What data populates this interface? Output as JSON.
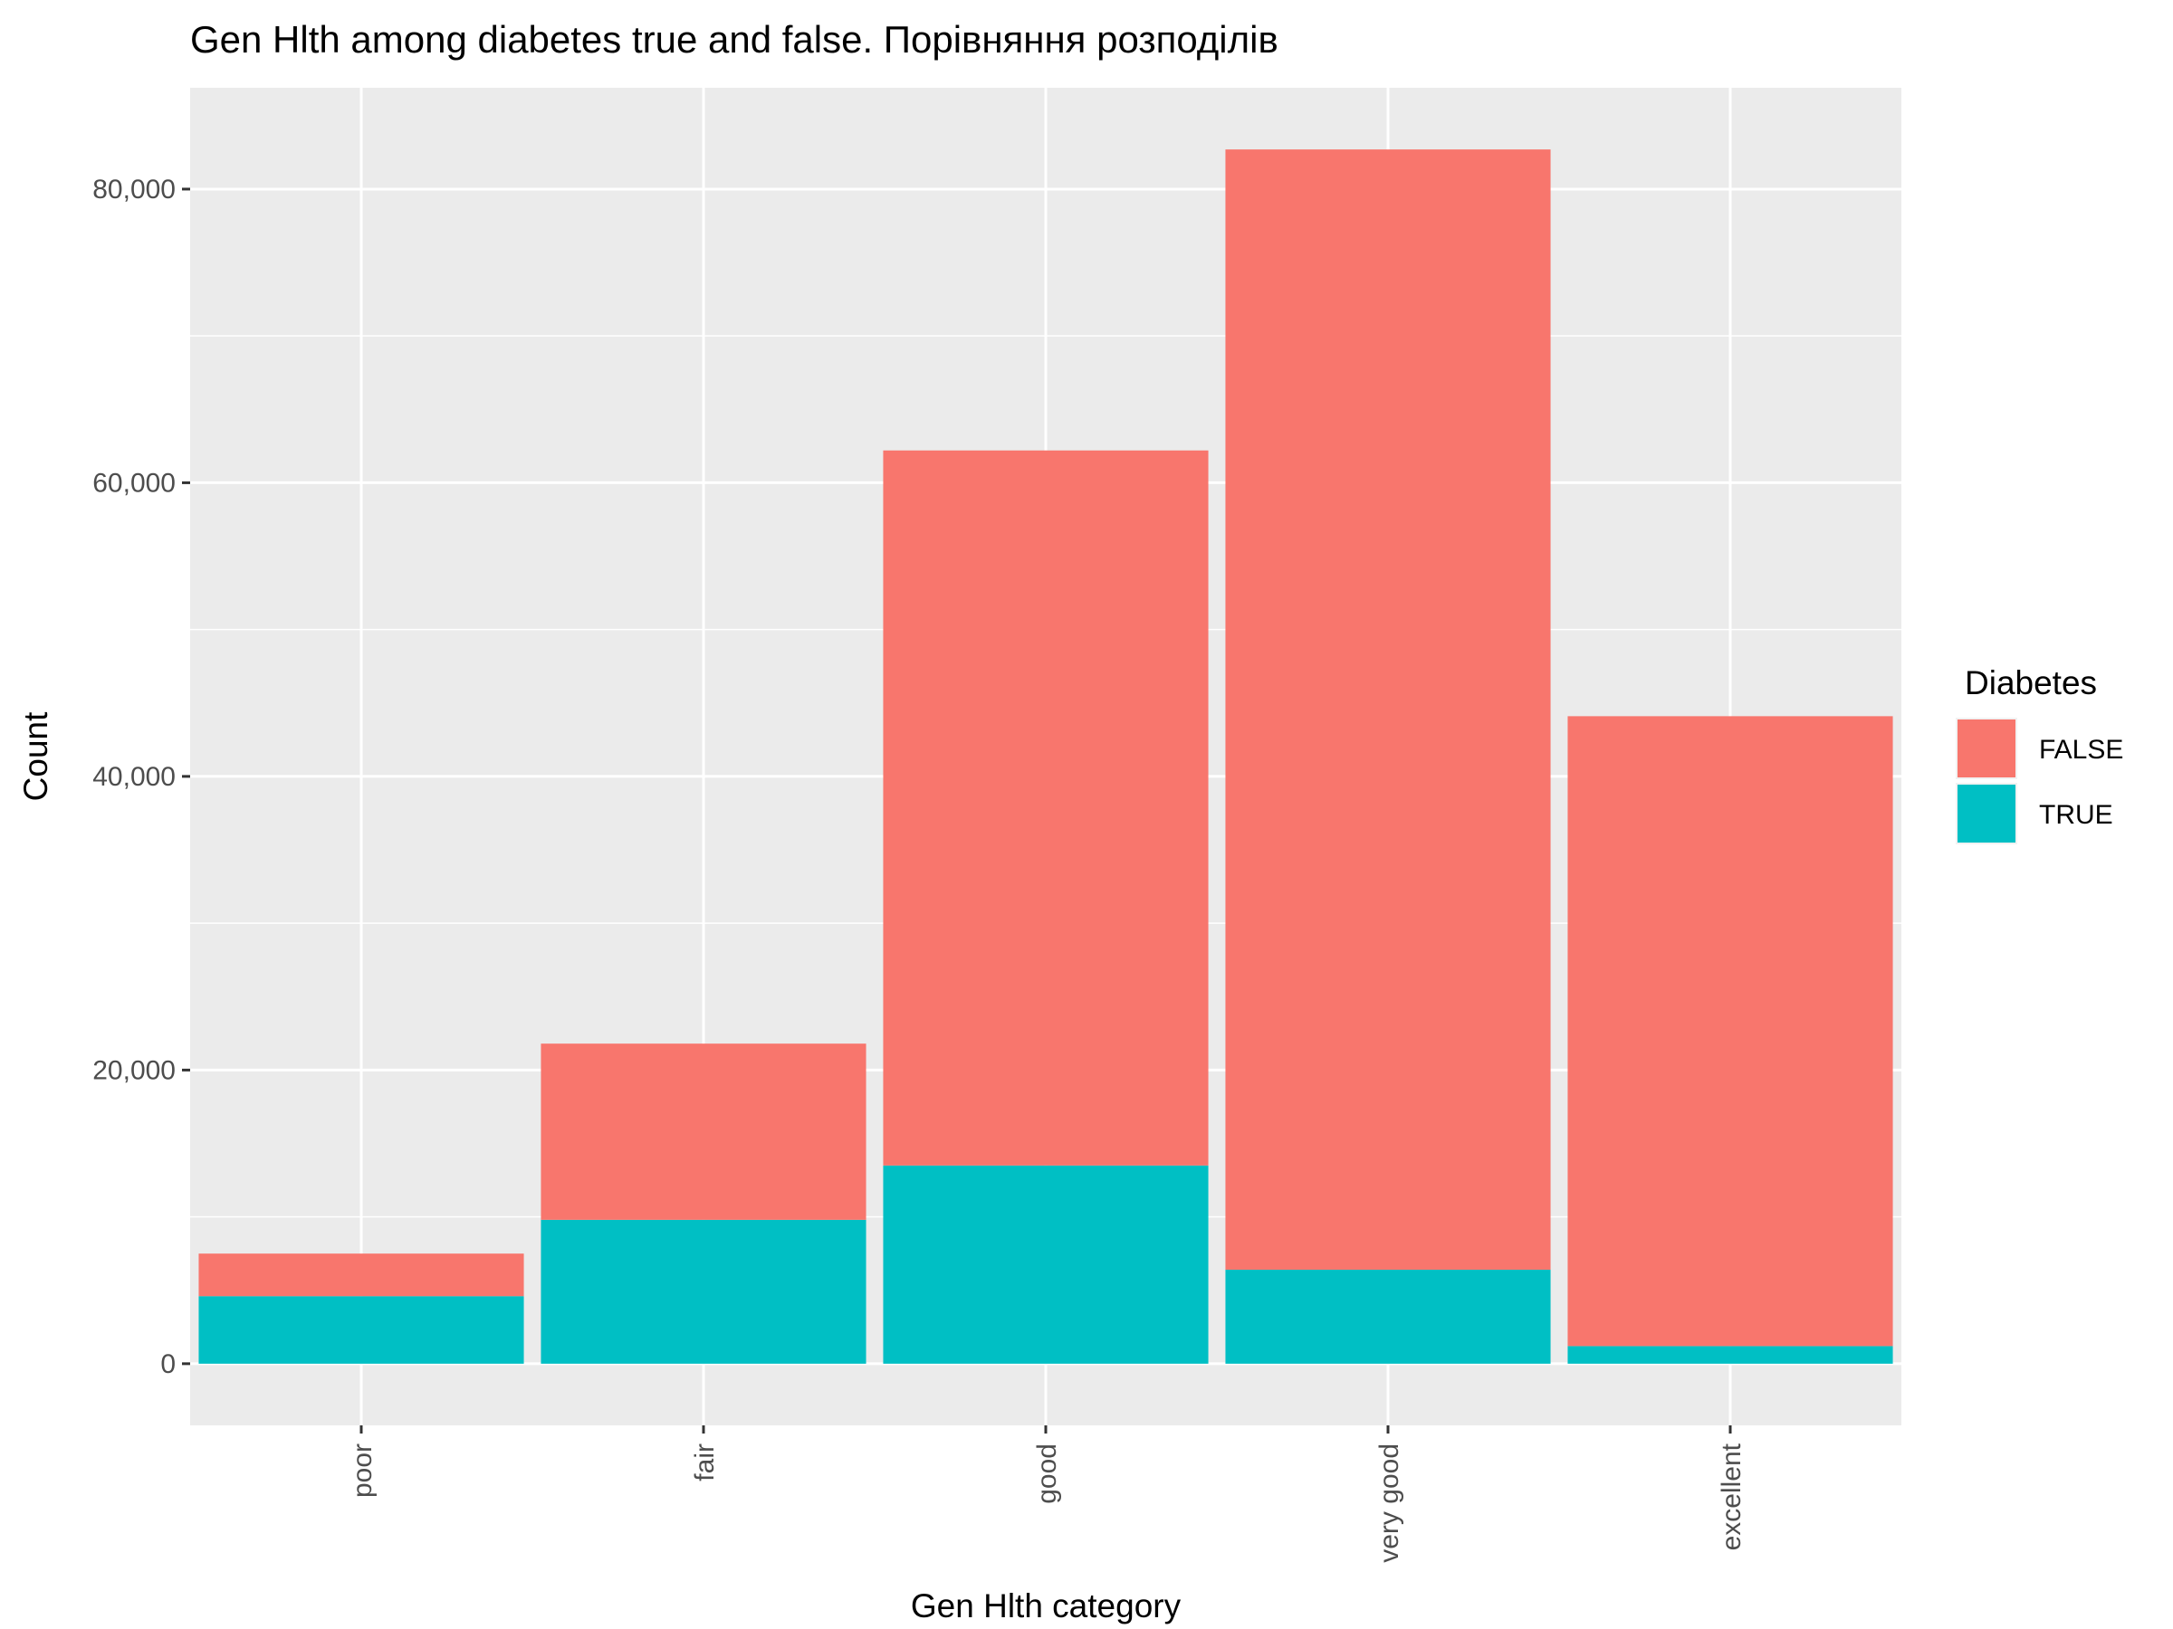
{
  "chart_data": {
    "type": "bar",
    "stacked": true,
    "title": "Gen Hlth among diabetes true and false. Порівняння розподілів",
    "xlabel": "Gen Hlth category",
    "ylabel": "Count",
    "categories": [
      "poor",
      "fair",
      "good",
      "very good",
      "excellent"
    ],
    "series": [
      {
        "name": "FALSE",
        "color": "#F8766D",
        "values": [
          2900,
          12000,
          48700,
          76300,
          42900
        ]
      },
      {
        "name": "TRUE",
        "color": "#00BFC4",
        "values": [
          4600,
          9800,
          13500,
          6400,
          1200
        ]
      }
    ],
    "ylim": [
      -4200,
      86900
    ],
    "yticks": [
      0,
      20000,
      40000,
      60000,
      80000
    ],
    "ytick_labels": [
      "0",
      "20,000",
      "40,000",
      "60,000",
      "80,000"
    ],
    "legend": {
      "title": "Diabetes",
      "position": "right"
    },
    "grid": true,
    "x_tick_rotation": "vertical",
    "panel_background": "#EBEBEB"
  }
}
